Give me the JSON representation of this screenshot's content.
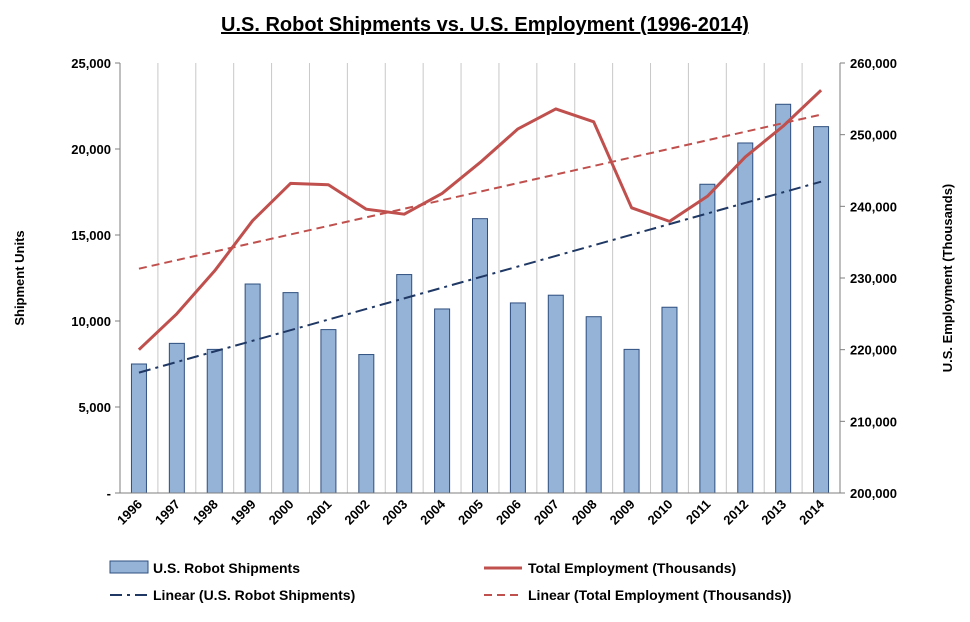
{
  "chart_data": {
    "type": "bar",
    "title": "U.S. Robot Shipments vs. U.S. Employment (1996-2014)",
    "categories": [
      "1996",
      "1997",
      "1998",
      "1999",
      "2000",
      "2001",
      "2002",
      "2003",
      "2004",
      "2005",
      "2006",
      "2007",
      "2008",
      "2009",
      "2010",
      "2011",
      "2012",
      "2013",
      "2014"
    ],
    "ylabel": "Shipment Units",
    "y2label": "U.S. Employment (Thousands)",
    "ylim": [
      0,
      25000
    ],
    "y2lim": [
      200000,
      260000
    ],
    "y_ticks": [
      "-",
      "5,000",
      "10,000",
      "15,000",
      "20,000",
      "25,000"
    ],
    "y2_ticks": [
      "200,000",
      "210,000",
      "220,000",
      "230,000",
      "240,000",
      "250,000",
      "260,000"
    ],
    "series": [
      {
        "name": "U.S. Robot Shipments",
        "type": "bar",
        "axis": "left",
        "color": "#95b3d7",
        "values": [
          7500,
          8700,
          8350,
          12150,
          11650,
          9500,
          8050,
          12700,
          10700,
          15950,
          11050,
          11500,
          10250,
          8350,
          10800,
          17950,
          20350,
          22600,
          21300
        ]
      },
      {
        "name": "Total Employment (Thousands)",
        "type": "line",
        "axis": "right",
        "color": "#c0504d",
        "values": [
          220000,
          225000,
          231000,
          238000,
          243200,
          243000,
          239600,
          238900,
          241800,
          246100,
          250800,
          253600,
          251800,
          239800,
          237900,
          241400,
          246900,
          251200,
          256200
        ]
      },
      {
        "name": "Linear (U.S. Robot Shipments)",
        "type": "trendline",
        "axis": "left",
        "color": "#1f3864",
        "dash": "dash-dot",
        "start": 7000,
        "end": 18100
      },
      {
        "name": "Linear (Total Employment (Thousands))",
        "type": "trendline",
        "axis": "right",
        "color": "#c0504d",
        "dash": "dashed",
        "start": 231300,
        "end": 252800
      }
    ],
    "grid": "vertical",
    "legend_position": "bottom"
  }
}
